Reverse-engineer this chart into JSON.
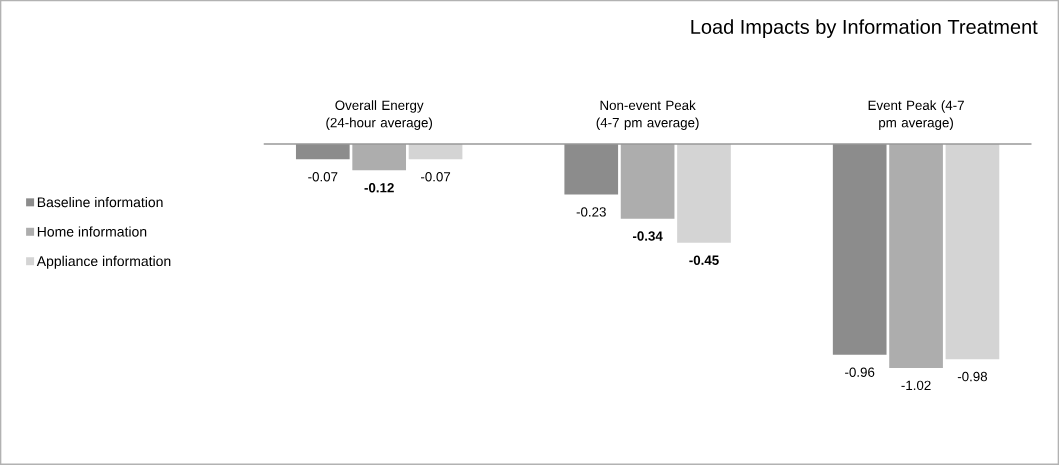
{
  "chart_data": {
    "type": "bar",
    "title": "Load Impacts by Information Treatment",
    "categories": [
      "Overall Energy (24-hour average)",
      "Non-event Peak (4-7 pm average)",
      "Event Peak (4-7 pm average)"
    ],
    "series": [
      {
        "name": "Baseline information",
        "color": "#8c8c8c",
        "values": [
          -0.07,
          -0.23,
          -0.96
        ],
        "value_labels": [
          "-0.07",
          "-0.23",
          "-0.96"
        ]
      },
      {
        "name": "Home information",
        "color": "#adadad",
        "values": [
          -0.12,
          -0.34,
          -1.02
        ],
        "value_labels": [
          "**-0.12**",
          "**-0.34**",
          "-1.02"
        ]
      },
      {
        "name": "Appliance information",
        "color": "#d4d4d4",
        "values": [
          -0.07,
          -0.45,
          -0.98
        ],
        "value_labels": [
          "-0.07",
          "**-0.45**",
          "-0.98"
        ]
      }
    ],
    "legend": "left"
  }
}
